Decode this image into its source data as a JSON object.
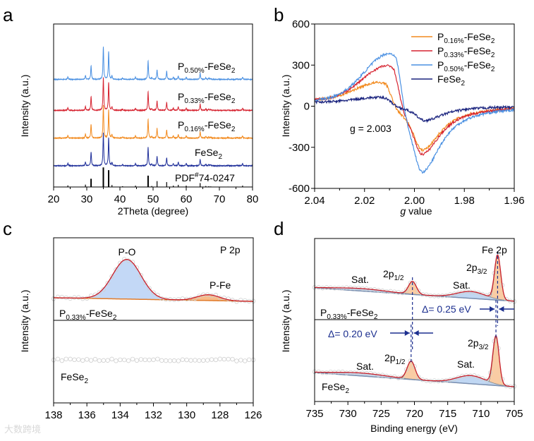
{
  "panels": {
    "a": "a",
    "b": "b",
    "c": "c",
    "d": "d"
  },
  "watermark": "大数跨境",
  "chart_data": [
    {
      "id": "a",
      "type": "line",
      "xlabel": "2Theta (degree)",
      "ylabel": "Intensity (a.u.)",
      "xlim": [
        20,
        80
      ],
      "ylim": [
        0,
        10
      ],
      "xticks": [
        20,
        30,
        40,
        50,
        60,
        70,
        80
      ],
      "peaks": [
        [
          24.3,
          0.08
        ],
        [
          29.6,
          0.12
        ],
        [
          31.3,
          0.42
        ],
        [
          35.0,
          1.0
        ],
        [
          36.6,
          0.86
        ],
        [
          37.6,
          0.1
        ],
        [
          40.8,
          0.04
        ],
        [
          44.7,
          0.07
        ],
        [
          48.5,
          0.58
        ],
        [
          49.6,
          0.05
        ],
        [
          51.2,
          0.3
        ],
        [
          54.1,
          0.25
        ],
        [
          56.1,
          0.07
        ],
        [
          57.6,
          0.11
        ],
        [
          60.0,
          0.07
        ],
        [
          64.2,
          0.2
        ],
        [
          65.9,
          0.05
        ],
        [
          66.8,
          0.04
        ],
        [
          67.4,
          0.03
        ],
        [
          72.6,
          0.02
        ],
        [
          75.3,
          0.02
        ],
        [
          77.0,
          0.07
        ]
      ],
      "peak_scale": 2.0,
      "series": [
        {
          "name": "FeSe2",
          "label": [
            "FeSe",
            "2"
          ],
          "color": "#1f2f9a",
          "offset": 1.3
        },
        {
          "name": "P0.16%-FeSe2",
          "label": [
            "P",
            "0.16%",
            "-FeSe",
            "2"
          ],
          "color": "#f28a1e",
          "offset": 3.0
        },
        {
          "name": "P0.33%-FeSe2",
          "label": [
            "P",
            "0.33%",
            "-FeSe",
            "2"
          ],
          "color": "#d62330",
          "offset": 4.7
        },
        {
          "name": "P0.50%-FeSe2",
          "label": [
            "P",
            "0.50%",
            "-FeSe",
            "2"
          ],
          "color": "#4a90e2",
          "offset": 6.6
        }
      ],
      "reference": {
        "label": [
          "PDF",
          "#",
          "74-0247"
        ],
        "scale": 1.2,
        "color": "#000000"
      }
    },
    {
      "id": "b",
      "type": "line",
      "xlabel_italic": "g",
      "xlabel_rest": " value",
      "ylabel": "Intensity (a.u.)",
      "xlim": [
        2.04,
        1.96
      ],
      "ylim": [
        -600,
        600
      ],
      "xticks": [
        "2.04",
        "2.02",
        "2.00",
        "1.98",
        "1.96"
      ],
      "yticks": [
        "600",
        "300",
        "0",
        "-300",
        "-600"
      ],
      "annotation": "g = 2.003",
      "legend_position": "top-right",
      "series": [
        {
          "name": "P0.16%-FeSe2",
          "label": [
            "P",
            "0.16%",
            "-FeSe",
            "2"
          ],
          "color": "#f28a1e",
          "max": [
            2.012,
            180
          ],
          "min": [
            1.997,
            -320
          ]
        },
        {
          "name": "P0.33%-FeSe2",
          "label": [
            "P",
            "0.33%",
            "-FeSe",
            "2"
          ],
          "color": "#d62330",
          "max": [
            2.009,
            320
          ],
          "min": [
            1.997,
            -350
          ]
        },
        {
          "name": "P0.50%-FeSe2",
          "label": [
            "P",
            "0.50%",
            "-FeSe",
            "2"
          ],
          "color": "#4a90e2",
          "max": [
            2.008,
            430
          ],
          "min": [
            1.997,
            -480
          ]
        },
        {
          "name": "FeSe2",
          "label": [
            "FeSe",
            "2"
          ],
          "color": "#1a237e",
          "max": [
            2.012,
            60
          ],
          "min": [
            1.996,
            -105
          ]
        }
      ]
    },
    {
      "id": "c",
      "type": "line",
      "ylabel": "Intensity (a.u.)",
      "xlim": [
        138,
        126
      ],
      "ylim": [
        0,
        10
      ],
      "xticks": [
        138,
        136,
        134,
        132,
        130,
        128,
        126
      ],
      "title": [
        "P 2p"
      ],
      "series": [
        {
          "name": "P0.33%-FeSe2",
          "label": [
            "P",
            "0.33%",
            "-FeSe",
            "2"
          ],
          "baseline": [
            6.37,
            6.15
          ],
          "components": [
            {
              "name": "P-O",
              "center": 133.6,
              "height": 2.4,
              "fwhm": 2.0,
              "color": "#bcd4f5"
            },
            {
              "name": "P-Fe",
              "center": 128.7,
              "height": 0.35,
              "fwhm": 1.6,
              "color": "#f7b37a"
            }
          ]
        },
        {
          "name": "FeSe2",
          "label": [
            "FeSe",
            "2"
          ],
          "baseline": [
            2.6,
            2.6
          ],
          "components": []
        }
      ],
      "peak_labels": [
        "P-O",
        "P-Fe"
      ]
    },
    {
      "id": "d",
      "type": "line",
      "xlabel": "Binding energy (eV)",
      "ylabel": "Intensity (a.u.)",
      "xlim": [
        735,
        705
      ],
      "ylim": [
        0,
        10
      ],
      "xticks": [
        735,
        730,
        725,
        720,
        715,
        710,
        705
      ],
      "title": "Fe 2p",
      "series": [
        {
          "name": "P0.33%-FeSe2",
          "label": [
            "P",
            "0.33%",
            "-FeSe",
            "2"
          ],
          "baseline": [
            6.97,
            6.15
          ],
          "components": [
            {
              "name": "2p3/2",
              "center": 707.5,
              "height": 2.7,
              "fwhm": 1.1,
              "color": "#f8c79a"
            },
            {
              "name": "2p1/2",
              "center": 720.3,
              "height": 0.78,
              "fwhm": 1.4,
              "color": "#f8c79a"
            },
            {
              "name": "Sat.",
              "center": 711.5,
              "height": 0.42,
              "fwhm": 5,
              "color": "#b9d3f2"
            },
            {
              "name": "Sat.",
              "center": 728,
              "height": 0.15,
              "fwhm": 9,
              "color": "#b9d3f2"
            }
          ]
        },
        {
          "name": "FeSe2",
          "label": [
            "FeSe",
            "2"
          ],
          "baseline": [
            1.77,
            0.9
          ],
          "components": [
            {
              "name": "2p3/2",
              "center": 707.75,
              "height": 2.95,
              "fwhm": 1.1,
              "color": "#f8c79a"
            },
            {
              "name": "2p1/2",
              "center": 720.5,
              "height": 1.1,
              "fwhm": 1.4,
              "color": "#f8c79a"
            },
            {
              "name": "Sat.",
              "center": 711.5,
              "height": 0.5,
              "fwhm": 5,
              "color": "#b9d3f2"
            },
            {
              "name": "Sat.",
              "center": 728,
              "height": 0.18,
              "fwhm": 9,
              "color": "#b9d3f2"
            }
          ]
        }
      ],
      "labels": {
        "p12": [
          "2p",
          "1/2"
        ],
        "p32": [
          "2p",
          "3/2"
        ],
        "sat": "Sat."
      },
      "shifts": [
        {
          "text": "Δ= 0.25 eV",
          "from": 707.75,
          "to": 707.5
        },
        {
          "text": "Δ= 0.20 eV",
          "from": 720.5,
          "to": 720.3
        }
      ]
    }
  ]
}
